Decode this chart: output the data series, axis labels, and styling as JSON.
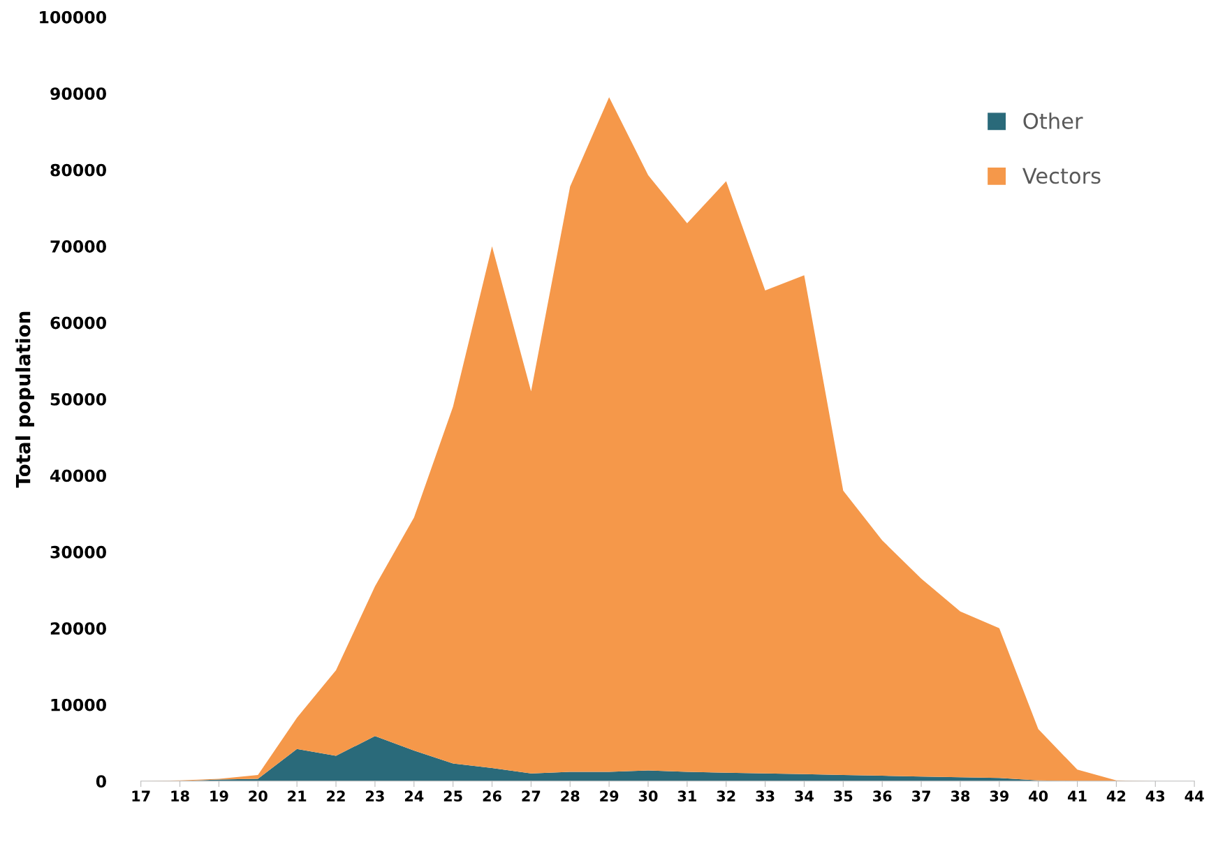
{
  "chart_data": {
    "type": "area",
    "stacked": true,
    "ylabel": "Total population",
    "categories": [
      "17",
      "18",
      "19",
      "20",
      "21",
      "22",
      "23",
      "24",
      "25",
      "26",
      "27",
      "28",
      "29",
      "30",
      "31",
      "32",
      "33",
      "34",
      "35",
      "36",
      "37",
      "38",
      "39",
      "40",
      "41",
      "42",
      "43",
      "44"
    ],
    "series": [
      {
        "name": "Other",
        "color": "#2a6a7a",
        "values": [
          0,
          0,
          200,
          300,
          4200,
          3300,
          5900,
          4000,
          2300,
          1700,
          1000,
          1200,
          1200,
          1400,
          1200,
          1100,
          1000,
          900,
          800,
          700,
          600,
          500,
          400,
          100,
          0,
          0,
          0,
          0
        ]
      },
      {
        "name": "Vectors",
        "color": "#f5984a",
        "values": [
          0,
          100,
          100,
          500,
          4100,
          11200,
          19600,
          30500,
          46700,
          68300,
          50000,
          76600,
          88300,
          77900,
          71800,
          77400,
          63200,
          65300,
          37200,
          30800,
          25900,
          21700,
          19600,
          6700,
          1500,
          100,
          0,
          0
        ]
      }
    ],
    "ylim": [
      0,
      100000
    ],
    "yticks": [
      0,
      10000,
      20000,
      30000,
      40000,
      50000,
      60000,
      70000,
      80000,
      90000,
      100000
    ],
    "grid": false,
    "legend": "top right"
  }
}
